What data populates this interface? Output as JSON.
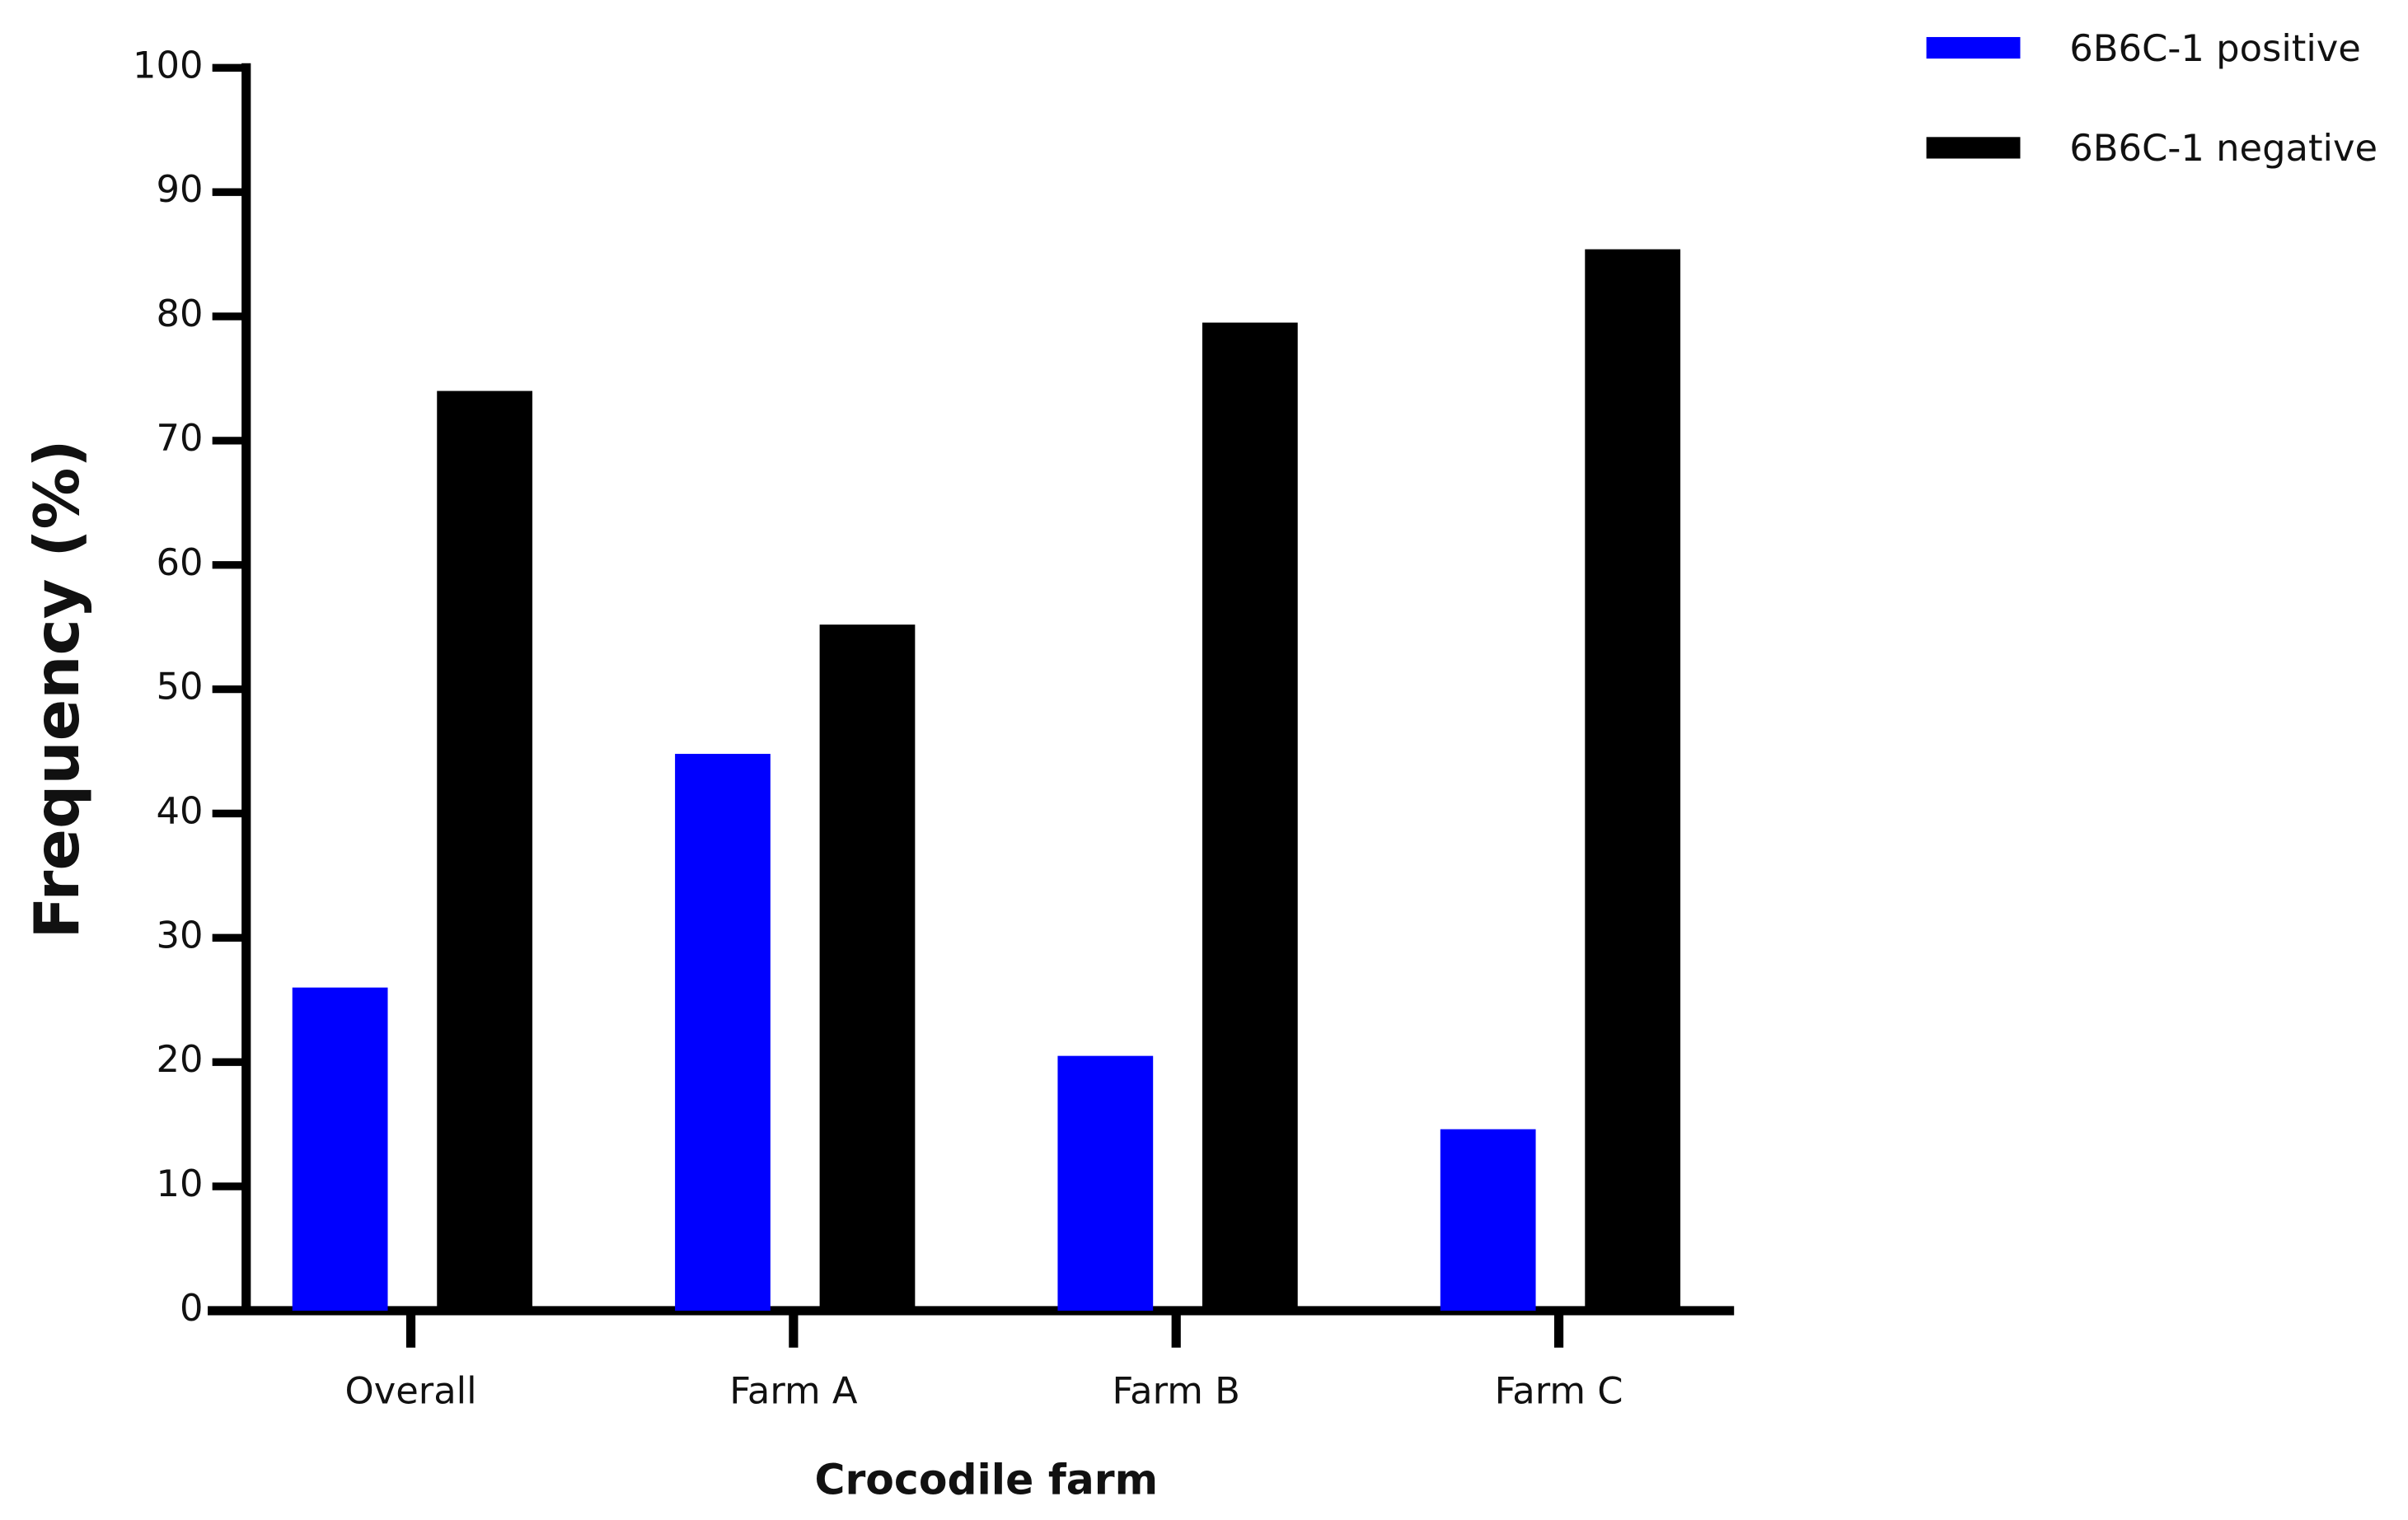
{
  "chart_data": {
    "type": "bar",
    "x_label": "Crocodile farm",
    "y_label": "Frequency (%)",
    "categories": [
      "Overall",
      "Farm A",
      "Farm B",
      "Farm C"
    ],
    "series": [
      {
        "name": "6B6C-1 positive",
        "color": "#0000ff",
        "values": [
          26,
          44.8,
          20.5,
          14.6
        ]
      },
      {
        "name": "6B6C-1 negative",
        "color": "#000000",
        "values": [
          74,
          55.2,
          79.5,
          85.4
        ]
      }
    ],
    "ylim": [
      0,
      100
    ],
    "yticks": [
      0,
      10,
      20,
      30,
      40,
      50,
      60,
      70,
      80,
      90,
      100
    ],
    "grid": false,
    "legend": "top-right"
  }
}
